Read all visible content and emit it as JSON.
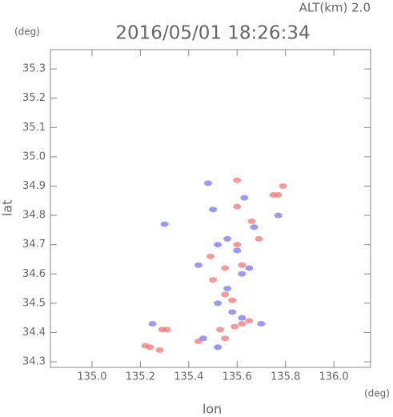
{
  "chart_data": {
    "type": "scatter",
    "title": "2016/05/01 18:26:34",
    "subtitle": "ALT(km) 2.0",
    "xlabel": "lon",
    "ylabel": "lat",
    "xunit": "(deg)",
    "yunit": "(deg)",
    "xlim": [
      134.828,
      136.152
    ],
    "ylim": [
      34.281,
      35.366
    ],
    "xticks": [
      {
        "value": 135,
        "label": "135.0"
      },
      135.2,
      135.4,
      135.6,
      135.8,
      {
        "value": 136,
        "label": "136.0"
      }
    ],
    "yticks": [
      34.3,
      34.4,
      34.5,
      34.6,
      34.7,
      34.8,
      34.9,
      {
        "value": 35,
        "label": "35.0"
      },
      35.1,
      35.2,
      35.3
    ],
    "series": [
      {
        "color": "#f07878",
        "x": [
          135.22,
          135.24,
          135.28,
          135.29,
          135.31,
          135.44,
          135.55,
          135.59,
          135.62,
          135.65,
          135.53,
          135.58,
          135.55,
          135.49,
          135.6,
          135.6,
          135.6,
          135.66,
          135.75,
          135.77,
          135.79,
          135.69,
          135.5,
          135.62,
          135.55
        ],
        "values": [
          34.355,
          34.35,
          34.34,
          34.41,
          34.41,
          34.37,
          34.38,
          34.42,
          34.43,
          34.44,
          34.41,
          34.51,
          34.62,
          34.66,
          34.7,
          34.92,
          34.83,
          34.78,
          34.87,
          34.87,
          34.9,
          34.72,
          34.58,
          34.63,
          34.53
        ]
      },
      {
        "color": "#7878f0",
        "x": [
          135.48,
          135.46,
          135.52,
          135.62,
          135.7,
          135.52,
          135.58,
          135.56,
          135.62,
          135.6,
          135.52,
          135.56,
          135.63,
          135.67,
          135.77,
          135.5,
          135.3,
          135.25,
          135.44,
          135.65
        ],
        "values": [
          34.91,
          34.38,
          34.35,
          34.45,
          34.43,
          34.5,
          34.47,
          34.55,
          34.6,
          34.68,
          34.7,
          34.72,
          34.86,
          34.76,
          34.8,
          34.82,
          34.77,
          34.43,
          34.63,
          34.62
        ]
      }
    ]
  }
}
